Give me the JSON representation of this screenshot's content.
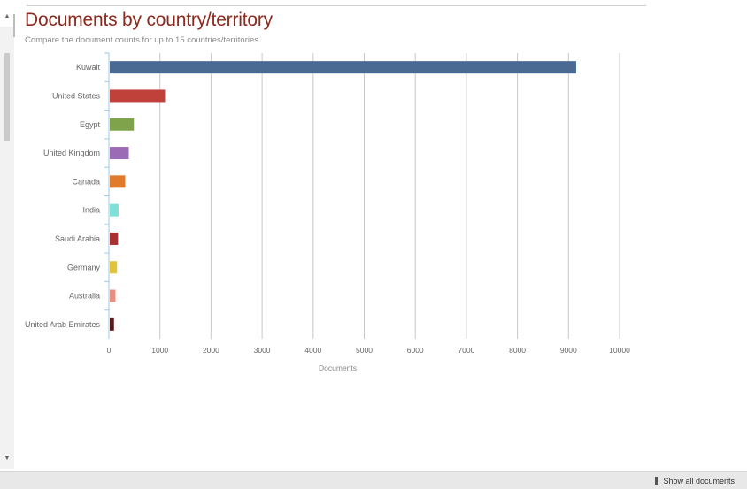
{
  "chart_data": {
    "type": "bar",
    "orientation": "horizontal",
    "title": "Documents by country/territory",
    "subtitle": "Compare the document counts for up to 15 countries/territories.",
    "xlabel": "Documents",
    "ylabel": "",
    "xlim": [
      0,
      10000
    ],
    "xticks": [
      "0",
      "1000",
      "2000",
      "3000",
      "4000",
      "5000",
      "6000",
      "7000",
      "8000",
      "9000",
      "10000"
    ],
    "grid": true,
    "legend": "none",
    "categories": [
      "Kuwait",
      "United States",
      "Egypt",
      "United Kingdom",
      "Canada",
      "India",
      "Saudi Arabia",
      "Germany",
      "Australia",
      "United Arab Emirates"
    ],
    "values": [
      9150,
      1100,
      490,
      390,
      320,
      190,
      180,
      160,
      130,
      100
    ],
    "colors": [
      "#4a6a94",
      "#c0413a",
      "#7ea34a",
      "#9b6bb5",
      "#e07b2c",
      "#7fe0d6",
      "#a83232",
      "#e0c43a",
      "#e89080",
      "#5a1a1a"
    ]
  },
  "footer": {
    "show_all_label": "Show all documents"
  },
  "icons": {
    "scroll_up": "up-arrow-icon",
    "scroll_down": "down-arrow-icon",
    "show_all": "bar-icon"
  }
}
